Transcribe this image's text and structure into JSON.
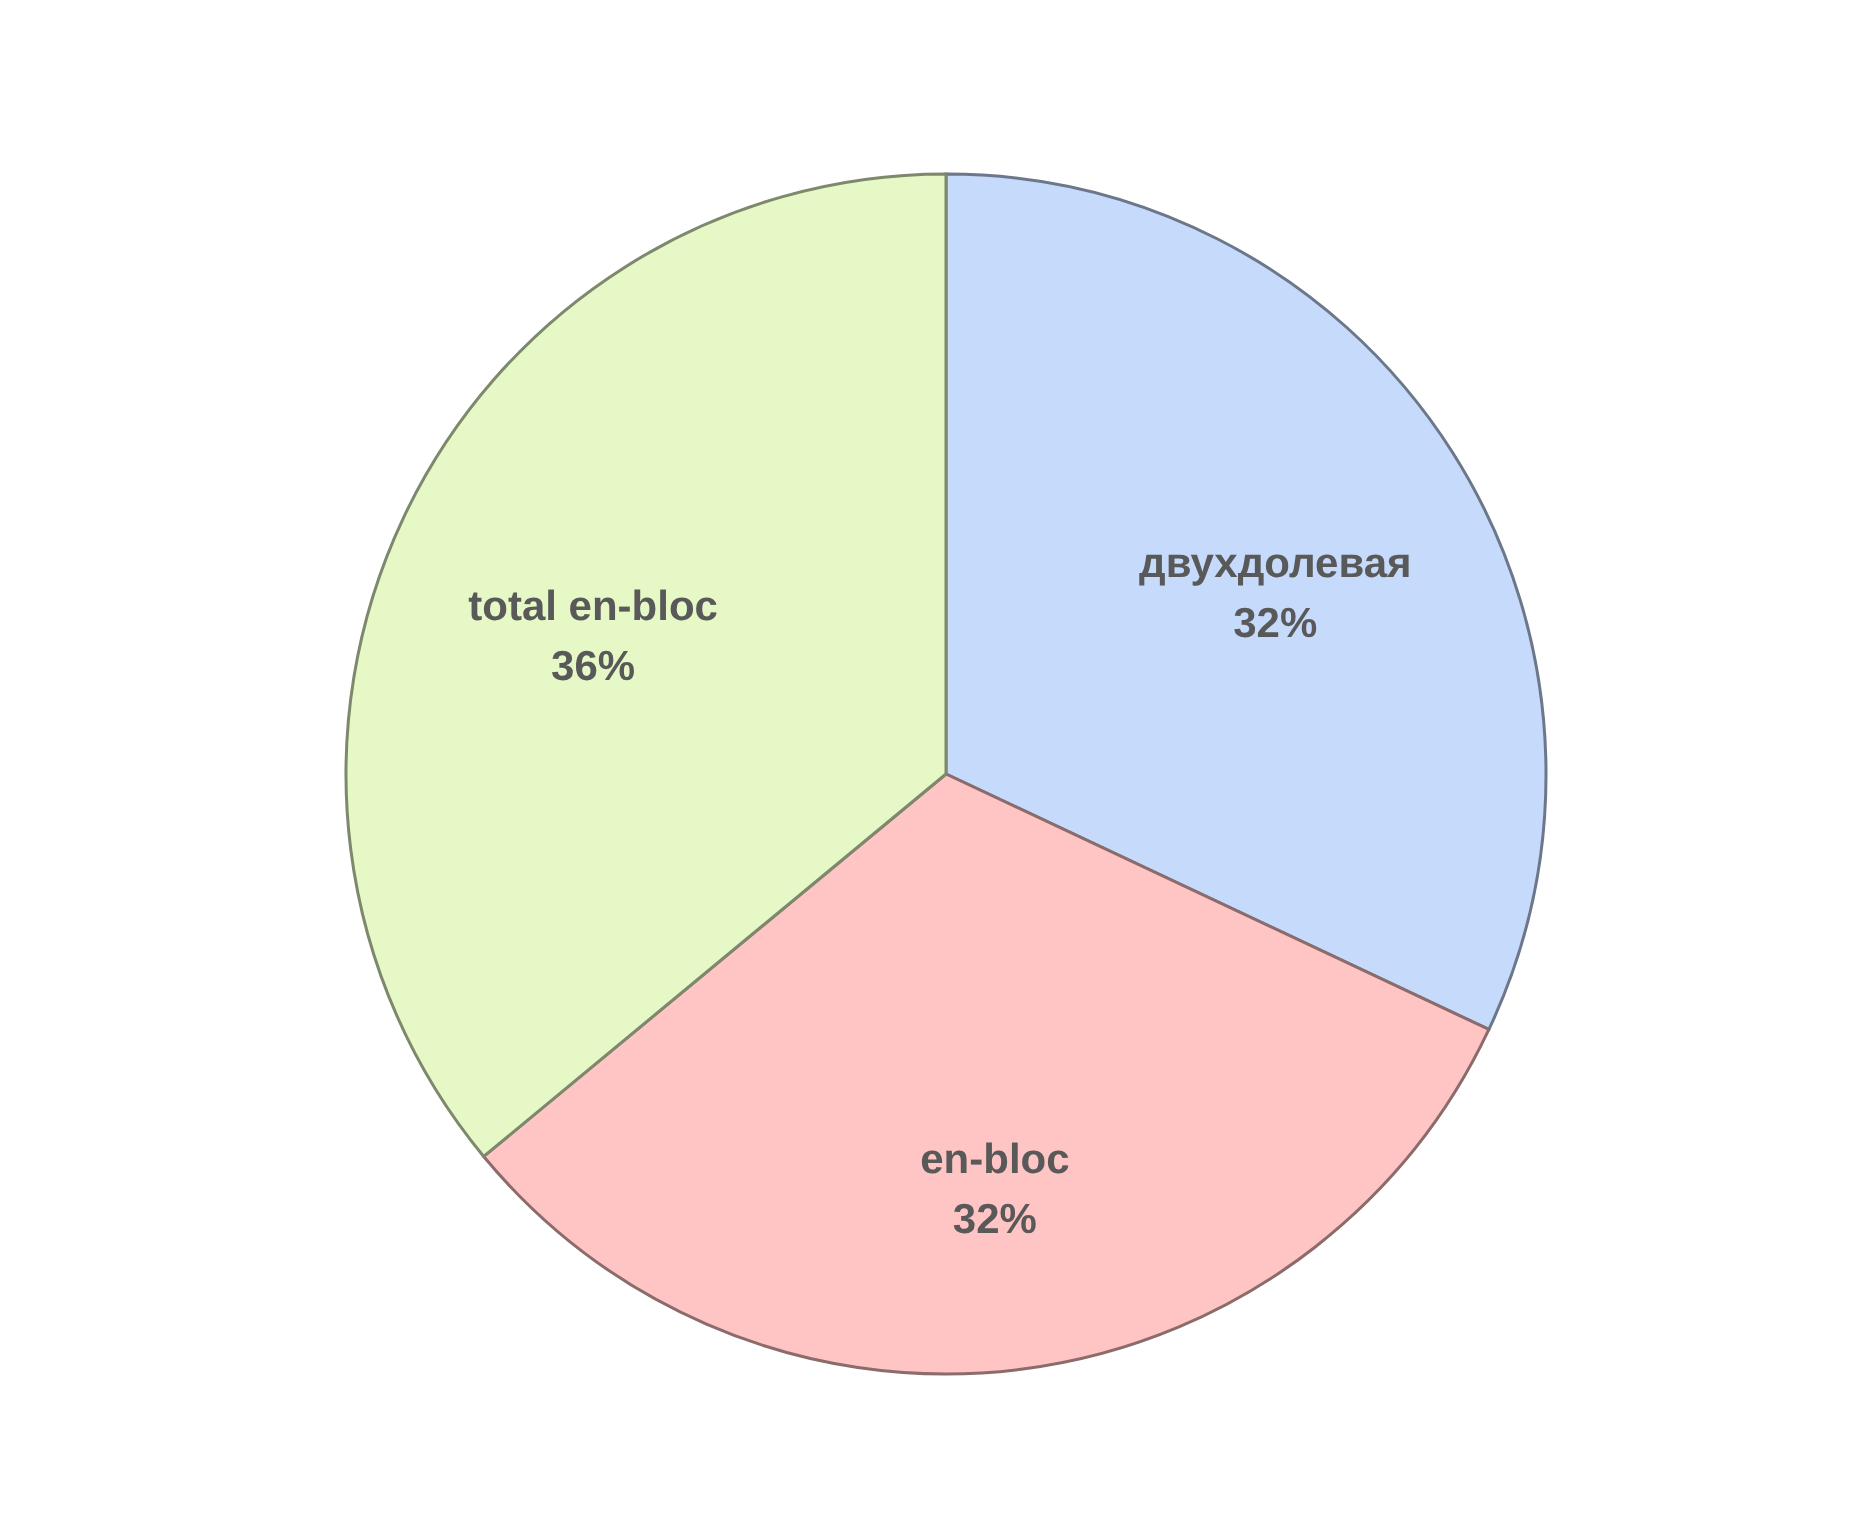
{
  "chart_data": {
    "type": "pie",
    "categories": [
      "двухдолевая",
      "en-bloc",
      "total en-bloc"
    ],
    "values": [
      32,
      32,
      36
    ],
    "colors": [
      "#c6dafb",
      "#ffc4c4",
      "#e5f8c6"
    ],
    "value_labels": [
      "32%",
      "32%",
      "36%"
    ],
    "legend": false
  }
}
